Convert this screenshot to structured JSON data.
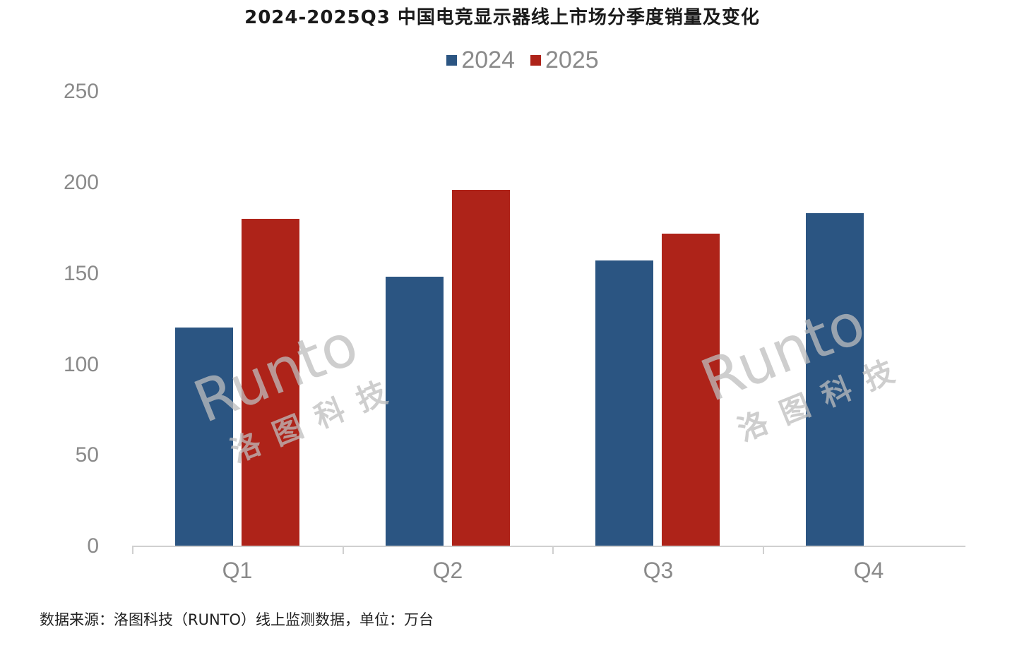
{
  "title": "2024-2025Q3 中国电竞显示器线上市场分季度销量及变化",
  "legend": [
    {
      "label": "2024",
      "color": "#2b5582"
    },
    {
      "label": "2025",
      "color": "#ae2319"
    }
  ],
  "source_note": "数据来源：洛图科技（RUNTO）线上监测数据，单位：万台",
  "watermark": {
    "en": "Runto",
    "cn": "洛图科技"
  },
  "chart_data": {
    "type": "bar",
    "title": "2024-2025Q3 中国电竞显示器线上市场分季度销量及变化",
    "xlabel": "",
    "ylabel": "",
    "unit": "万台",
    "categories": [
      "Q1",
      "Q2",
      "Q3",
      "Q4"
    ],
    "series": [
      {
        "name": "2024",
        "color": "#2b5582",
        "values": [
          120,
          148,
          157,
          183
        ]
      },
      {
        "name": "2025",
        "color": "#ae2319",
        "values": [
          180,
          196,
          172,
          null
        ]
      }
    ],
    "yticks": [
      "0",
      "50",
      "100",
      "150",
      "200",
      "250"
    ],
    "ylim": [
      0,
      250
    ],
    "grid": false,
    "legend_position": "top"
  }
}
